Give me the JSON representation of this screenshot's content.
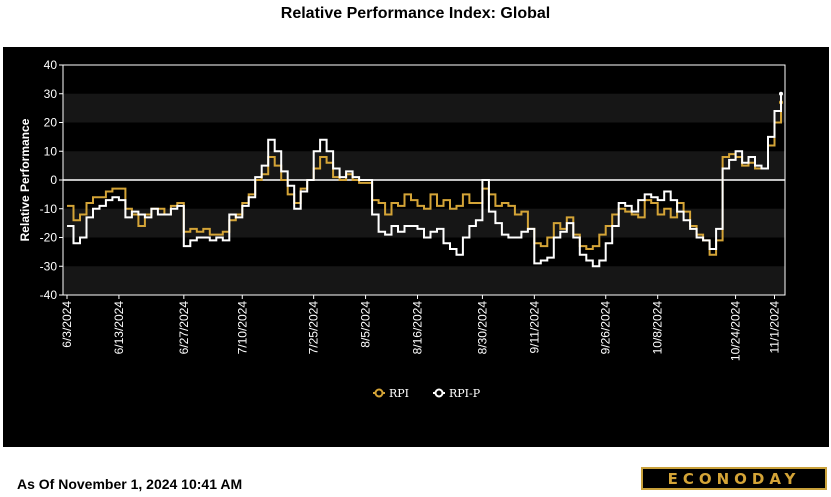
{
  "chart_data": {
    "type": "line",
    "title": "Relative Performance Index: Global",
    "xlabel": "",
    "ylabel": "Relative Performance",
    "ylim": [
      -40,
      40
    ],
    "yticks": [
      "40",
      "30",
      "20",
      "10",
      "0",
      "-10",
      "-20",
      "-30",
      "-40"
    ],
    "xtick_labels": [
      "6/3/2024",
      "6/13/2024",
      "6/27/2024",
      "7/10/2024",
      "7/25/2024",
      "8/5/2024",
      "8/16/2024",
      "8/30/2024",
      "9/11/2024",
      "9/26/2024",
      "10/8/2024",
      "10/24/2024",
      "11/1/2024"
    ],
    "xtick_index": [
      0,
      8,
      18,
      27,
      38,
      46,
      54,
      64,
      72,
      83,
      91,
      103,
      109
    ],
    "legend": [
      {
        "name": "RPI",
        "color": "#d4a437"
      },
      {
        "name": "RPI-P",
        "color": "#ffffff"
      }
    ],
    "legend_position": "bottom-center",
    "series": [
      {
        "name": "RPI",
        "color": "#d4a437",
        "values": [
          -9,
          -14,
          -12,
          -8,
          -6,
          -6,
          -4,
          -3,
          -3,
          -10,
          -12,
          -16,
          -12,
          -10,
          -10,
          -12,
          -9,
          -8,
          -18,
          -17,
          -18,
          -17,
          -19,
          -19,
          -18,
          -14,
          -12,
          -8,
          -5,
          0,
          2,
          8,
          5,
          0,
          -5,
          -8,
          -3,
          0,
          4,
          8,
          6,
          1,
          0,
          2,
          0,
          -1,
          -1,
          -7,
          -8,
          -12,
          -8,
          -9,
          -5,
          -7,
          -9,
          -10,
          -5,
          -9,
          -7,
          -10,
          -9,
          -5,
          -8,
          -8,
          -3,
          -5,
          -9,
          -8,
          -9,
          -12,
          -11,
          -17,
          -22,
          -23,
          -20,
          -15,
          -17,
          -13,
          -19,
          -23,
          -24,
          -23,
          -19,
          -16,
          -12,
          -10,
          -11,
          -12,
          -13,
          -7,
          -8,
          -12,
          -10,
          -13,
          -8,
          -11,
          -16,
          -19,
          -21,
          -26,
          -21,
          8,
          9,
          8,
          5,
          6,
          4,
          4,
          12,
          20,
          27
        ]
      },
      {
        "name": "RPI-P",
        "color": "#ffffff",
        "values": [
          -16,
          -22,
          -20,
          -13,
          -10,
          -9,
          -7,
          -6,
          -7,
          -13,
          -11,
          -12,
          -13,
          -10,
          -12,
          -12,
          -10,
          -9,
          -23,
          -21,
          -20,
          -20,
          -21,
          -20,
          -21,
          -12,
          -13,
          -9,
          -6,
          1,
          5,
          14,
          10,
          3,
          -2,
          -10,
          -4,
          0,
          10,
          14,
          10,
          4,
          1,
          3,
          1,
          0,
          0,
          -12,
          -18,
          -19,
          -16,
          -18,
          -16,
          -16,
          -17,
          -20,
          -18,
          -17,
          -22,
          -24,
          -26,
          -20,
          -16,
          -14,
          0,
          -11,
          -15,
          -19,
          -20,
          -20,
          -18,
          -17,
          -29,
          -28,
          -27,
          -20,
          -18,
          -15,
          -20,
          -26,
          -28,
          -30,
          -28,
          -22,
          -16,
          -8,
          -9,
          -11,
          -7,
          -5,
          -6,
          -7,
          -4,
          -7,
          -11,
          -14,
          -17,
          -20,
          -21,
          -24,
          -17,
          4,
          7,
          10,
          6,
          8,
          5,
          4,
          15,
          24,
          30
        ]
      }
    ]
  },
  "branding": {
    "logo": "ECONODAY"
  },
  "footer": {
    "timestamp": "As Of November 1, 2024 10:41 AM"
  }
}
